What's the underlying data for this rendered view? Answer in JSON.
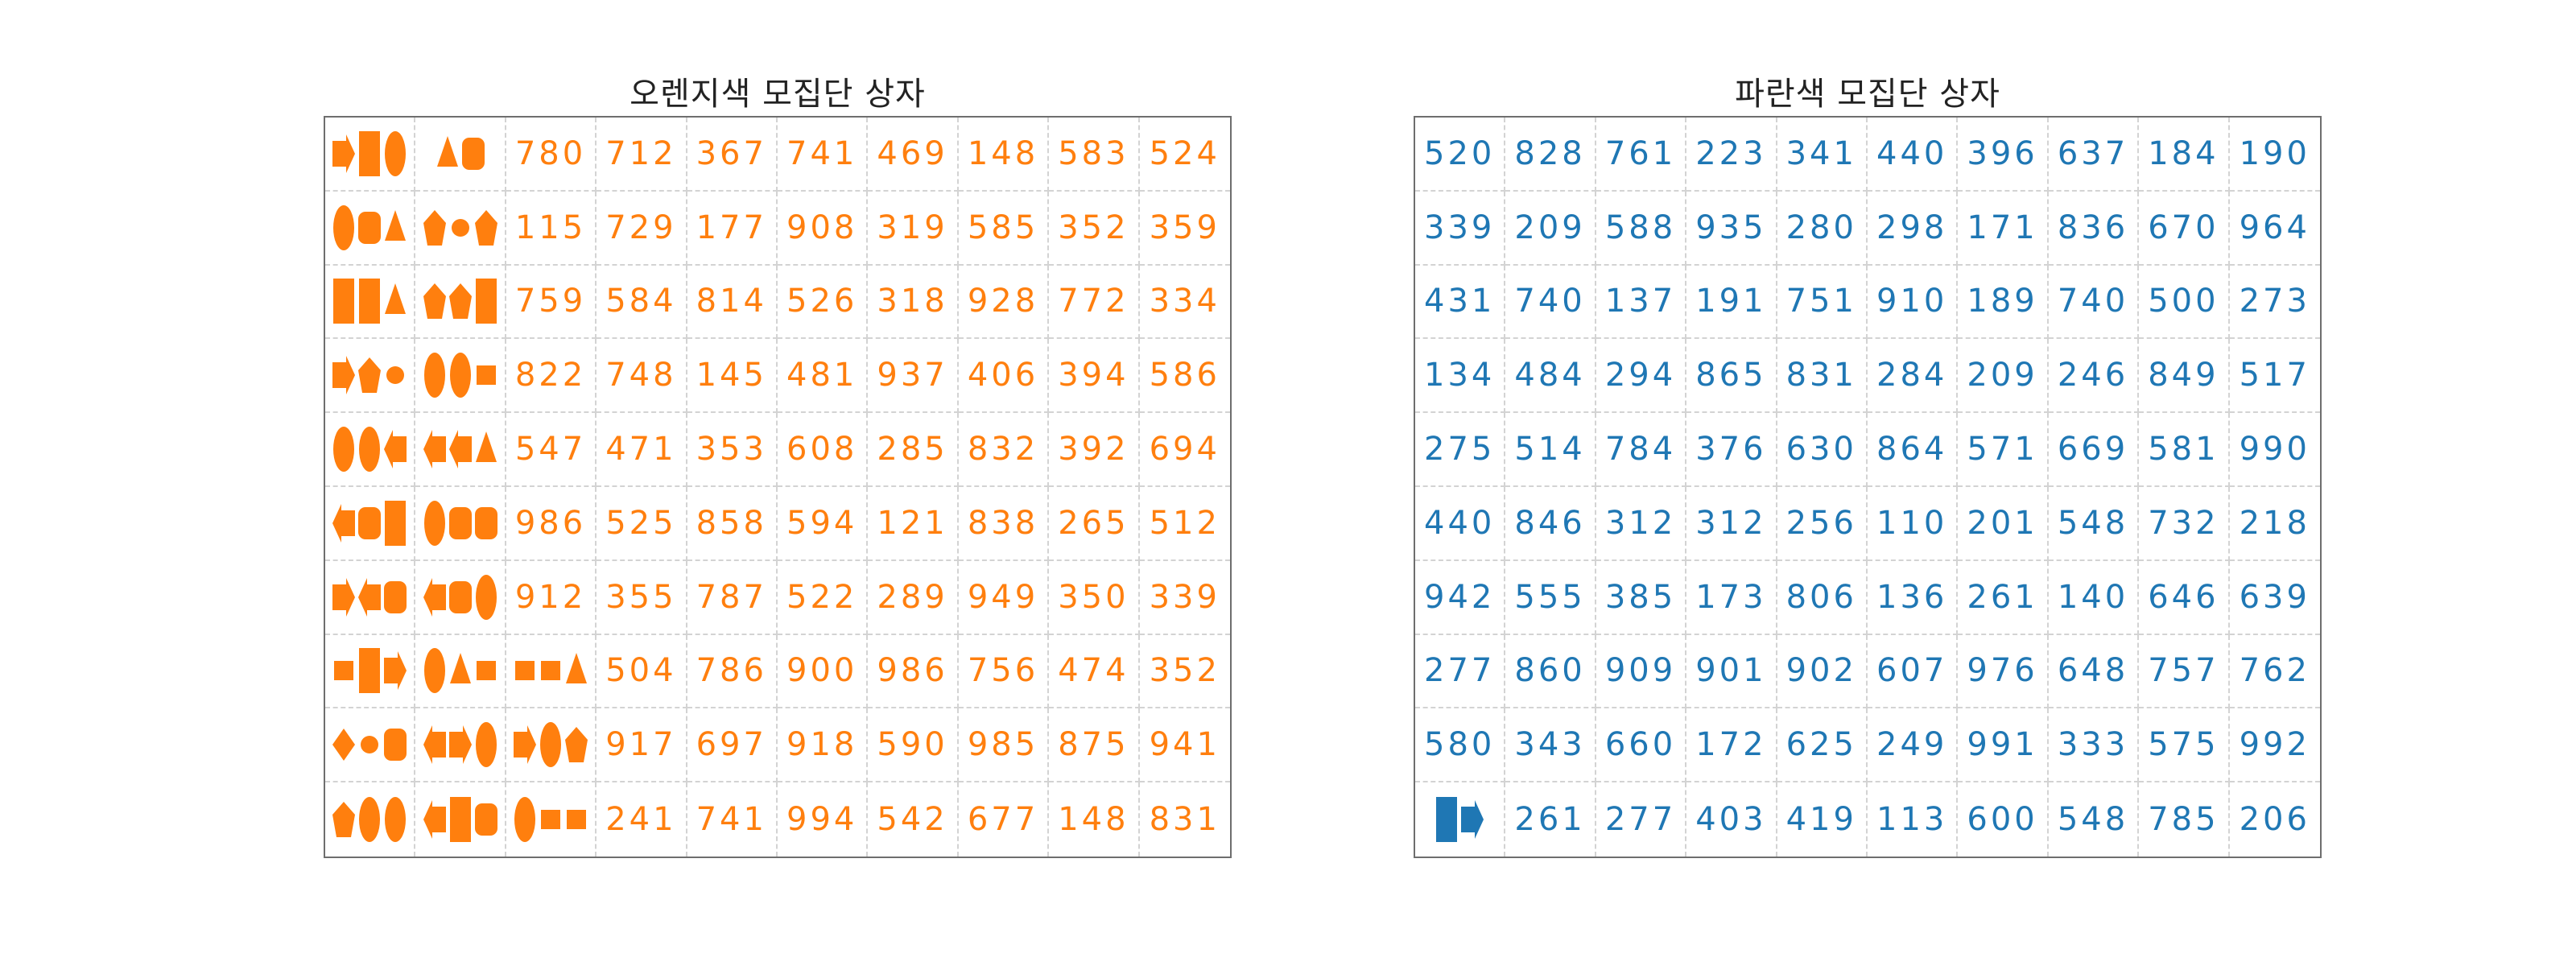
{
  "colors": {
    "orange": "#ff7f0e",
    "blue": "#1f77b4"
  },
  "panels": [
    {
      "id": "orange",
      "title": "오렌지색 모집단 상자",
      "color": "#ff7f0e",
      "cells": [
        [
          "shapes:arrow,rect,ellipse",
          "shapes:triangle,rounded",
          "780",
          "712",
          "367",
          "741",
          "469",
          "148",
          "583",
          "524"
        ],
        [
          "shapes:ellipse,rounded,triangle",
          "shapes:pentagon,circle,pentagon",
          "115",
          "729",
          "177",
          "908",
          "319",
          "585",
          "352",
          "359"
        ],
        [
          "shapes:rect,rect,triangle",
          "shapes:pentagon,pentagon,rect",
          "759",
          "584",
          "814",
          "526",
          "318",
          "928",
          "772",
          "334"
        ],
        [
          "shapes:arrow,pentagon,circle",
          "shapes:ellipse,ellipse,square",
          "822",
          "748",
          "145",
          "481",
          "937",
          "406",
          "394",
          "586"
        ],
        [
          "shapes:ellipse,ellipse,leftarrow",
          "shapes:leftarrow,leftarrow,triangle",
          "547",
          "471",
          "353",
          "608",
          "285",
          "832",
          "392",
          "694"
        ],
        [
          "shapes:leftarrow,rounded,rect",
          "shapes:ellipse,rounded,rounded",
          "986",
          "525",
          "858",
          "594",
          "121",
          "838",
          "265",
          "512"
        ],
        [
          "shapes:arrow,leftarrow,rounded",
          "shapes:leftarrow,rounded,ellipse",
          "912",
          "355",
          "787",
          "522",
          "289",
          "949",
          "350",
          "339"
        ],
        [
          "shapes:square,rect,arrow",
          "shapes:ellipse,triangle,square",
          "shapes:square,square,triangle",
          "504",
          "786",
          "900",
          "986",
          "756",
          "474",
          "352"
        ],
        [
          "shapes:diamond,circle,rounded",
          "shapes:leftarrow,arrow,ellipse",
          "shapes:arrow,ellipse,pentagon",
          "917",
          "697",
          "918",
          "590",
          "985",
          "875",
          "941"
        ],
        [
          "shapes:pentagon,ellipse,ellipse",
          "shapes:leftarrow,rect,rounded",
          "shapes:ellipse,square,square",
          "241",
          "741",
          "994",
          "542",
          "677",
          "148",
          "831"
        ]
      ]
    },
    {
      "id": "blue",
      "title": "파란색 모집단 상자",
      "color": "#1f77b4",
      "cells": [
        [
          "520",
          "828",
          "761",
          "223",
          "341",
          "440",
          "396",
          "637",
          "184",
          "190"
        ],
        [
          "339",
          "209",
          "588",
          "935",
          "280",
          "298",
          "171",
          "836",
          "670",
          "964"
        ],
        [
          "431",
          "740",
          "137",
          "191",
          "751",
          "910",
          "189",
          "740",
          "500",
          "273"
        ],
        [
          "134",
          "484",
          "294",
          "865",
          "831",
          "284",
          "209",
          "246",
          "849",
          "517"
        ],
        [
          "275",
          "514",
          "784",
          "376",
          "630",
          "864",
          "571",
          "669",
          "581",
          "990"
        ],
        [
          "440",
          "846",
          "312",
          "312",
          "256",
          "110",
          "201",
          "548",
          "732",
          "218"
        ],
        [
          "942",
          "555",
          "385",
          "173",
          "806",
          "136",
          "261",
          "140",
          "646",
          "639"
        ],
        [
          "277",
          "860",
          "909",
          "901",
          "902",
          "607",
          "976",
          "648",
          "757",
          "762"
        ],
        [
          "580",
          "343",
          "660",
          "172",
          "625",
          "249",
          "991",
          "333",
          "575",
          "992"
        ],
        [
          "shapes:rect,arrow",
          "261",
          "277",
          "403",
          "419",
          "113",
          "600",
          "548",
          "785",
          "206"
        ]
      ]
    }
  ]
}
